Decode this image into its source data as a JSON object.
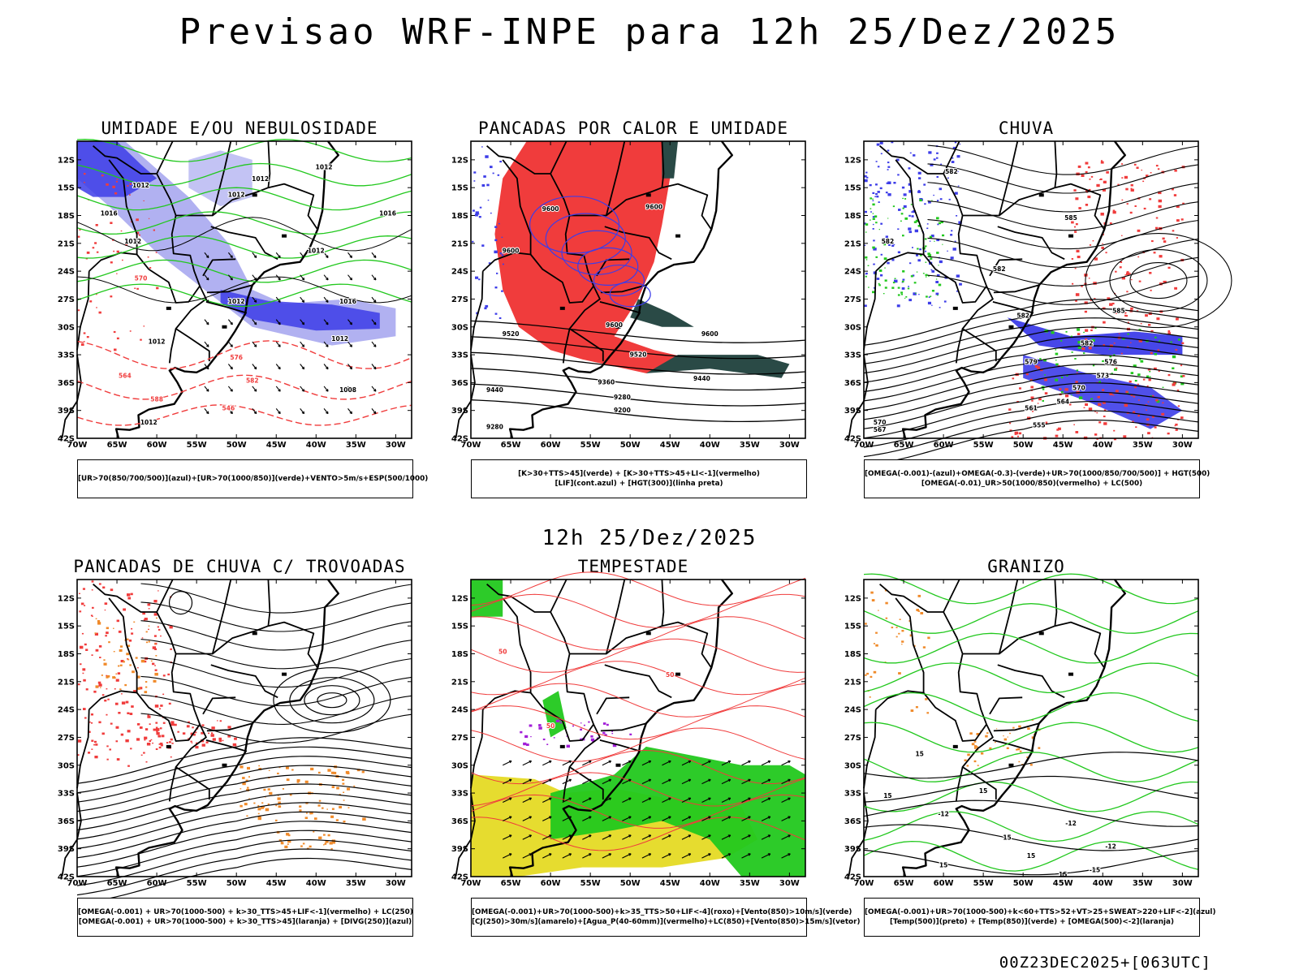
{
  "header": {
    "title": "Previsao WRF-INPE  para 12h 25/Dez/2025"
  },
  "mid_caption": "12h 25/Dez/2025",
  "footer": "00Z23DEC2025+[063UTC]",
  "axes": {
    "lat_labels": [
      "12S",
      "15S",
      "18S",
      "21S",
      "24S",
      "27S",
      "30S",
      "33S",
      "36S",
      "39S",
      "42S"
    ],
    "lon_labels": [
      "70W",
      "65W",
      "60W",
      "55W",
      "50W",
      "45W",
      "40W",
      "35W",
      "30W"
    ]
  },
  "panels": [
    {
      "id": "umidade",
      "title": "UMIDADE E/OU NEBULOSIDADE",
      "legend": [
        "[UR>70(850/700/500)](azul)+[UR>70(1000/850)](verde)+VENTO>5m/s+ESP(500/1000)"
      ],
      "contour_labels": [
        {
          "text": "1012",
          "lon": -39,
          "lat": -13.0
        },
        {
          "text": "1012",
          "lon": -47,
          "lat": -14.3
        },
        {
          "text": "1012",
          "lon": -62,
          "lat": -15.0
        },
        {
          "text": "1012",
          "lon": -50,
          "lat": -16.0
        },
        {
          "text": "1016",
          "lon": -66,
          "lat": -18.0
        },
        {
          "text": "1012",
          "lon": -63,
          "lat": -21.0
        },
        {
          "text": "1012",
          "lon": -40,
          "lat": -22.0
        },
        {
          "text": "1016",
          "lon": -31,
          "lat": -18.0
        },
        {
          "text": "1016",
          "lon": -36,
          "lat": -27.5
        },
        {
          "text": "1012",
          "lon": -50,
          "lat": -27.5
        },
        {
          "text": "1012",
          "lon": -37,
          "lat": -31.5
        },
        {
          "text": "1012",
          "lon": -60,
          "lat": -31.8
        },
        {
          "text": "1008",
          "lon": -36,
          "lat": -37.0
        },
        {
          "text": "1012",
          "lon": -61,
          "lat": -40.5
        },
        {
          "text": "582",
          "lon": -48,
          "lat": -36.0
        },
        {
          "text": "576",
          "lon": -50,
          "lat": -33.5
        },
        {
          "text": "564",
          "lon": -64,
          "lat": -35.5
        },
        {
          "text": "588",
          "lon": -60,
          "lat": -38.0
        },
        {
          "text": "546",
          "lon": -51,
          "lat": -39.0
        },
        {
          "text": "570",
          "lon": -62,
          "lat": -25.0
        }
      ]
    },
    {
      "id": "pancadas-calor",
      "title": "PANCADAS POR CALOR E UMIDADE",
      "legend": [
        "[K>30+TTS>45](verde) + [K>30+TTS>45+LI<-1](vermelho)",
        "[LIF](cont.azul) + [HGT(300)](linha preta)"
      ],
      "contour_labels": [
        {
          "text": "9600",
          "lon": -60,
          "lat": -17.5
        },
        {
          "text": "9600",
          "lon": -47,
          "lat": -17.3
        },
        {
          "text": "9600",
          "lon": -65,
          "lat": -22.0
        },
        {
          "text": "9600",
          "lon": -52,
          "lat": -30.0
        },
        {
          "text": "9600",
          "lon": -40,
          "lat": -31.0
        },
        {
          "text": "9520",
          "lon": -65,
          "lat": -31.0
        },
        {
          "text": "9520",
          "lon": -49,
          "lat": -33.2
        },
        {
          "text": "9440",
          "lon": -41,
          "lat": -35.8
        },
        {
          "text": "9440",
          "lon": -67,
          "lat": -37.0
        },
        {
          "text": "9360",
          "lon": -53,
          "lat": -36.2
        },
        {
          "text": "9280",
          "lon": -51,
          "lat": -37.8
        },
        {
          "text": "9200",
          "lon": -51,
          "lat": -39.2
        },
        {
          "text": "9280",
          "lon": -67,
          "lat": -41.0
        }
      ]
    },
    {
      "id": "chuva",
      "title": "CHUVA",
      "legend": [
        "[OMEGA(-0.001)-(azul)+OMEGA(-0.3)-(verde)+UR>70(1000/850/700/500)] + HGT(500)",
        "[OMEGA(-0.01)_UR>50(1000/850)(vermelho) + LC(500)"
      ],
      "contour_labels": [
        {
          "text": "582",
          "lon": -59,
          "lat": -13.5
        },
        {
          "text": "585",
          "lon": -44,
          "lat": -18.5
        },
        {
          "text": "582",
          "lon": -67,
          "lat": -21.0
        },
        {
          "text": "582",
          "lon": -53,
          "lat": -24.0
        },
        {
          "text": "582",
          "lon": -50,
          "lat": -29.0
        },
        {
          "text": "585",
          "lon": -38,
          "lat": -28.5
        },
        {
          "text": "582",
          "lon": -42,
          "lat": -32.0
        },
        {
          "text": "579",
          "lon": -49,
          "lat": -34.0
        },
        {
          "text": "576",
          "lon": -39,
          "lat": -34.0
        },
        {
          "text": "573",
          "lon": -40,
          "lat": -35.5
        },
        {
          "text": "570",
          "lon": -43,
          "lat": -36.8
        },
        {
          "text": "564",
          "lon": -45,
          "lat": -38.3
        },
        {
          "text": "561",
          "lon": -49,
          "lat": -39.0
        },
        {
          "text": "570",
          "lon": -68,
          "lat": -40.5
        },
        {
          "text": "567",
          "lon": -68,
          "lat": -41.3
        },
        {
          "text": "555",
          "lon": -48,
          "lat": -40.8
        }
      ]
    },
    {
      "id": "trovoadas",
      "title": "PANCADAS DE CHUVA C/ TROVOADAS",
      "legend": [
        "[OMEGA(-0.001) + UR>70(1000-500) + k>30_TTS>45+LIF<-1](vermelho) + LC(250)",
        "[OMEGA(-0.001) + UR>70(1000-500) + k>30_TTS>45](laranja) + [DIVG(250)](azul)"
      ],
      "contour_labels": []
    },
    {
      "id": "tempestade",
      "title": "TEMPESTADE",
      "legend": [
        "[OMEGA(-0.001)+UR>70(1000-500)+k>35_TTS>50+LIF<-4](roxo)+[Vento(850)>10m/s](verde)",
        "[CJ(250)>30m/s](amarelo)+[Agua_P(40-60mm)](vermelho)+LC(850)+[Vento(850)>15m/s](vetor)"
      ],
      "contour_labels": [
        {
          "text": "50",
          "lon": -66,
          "lat": -18.0
        },
        {
          "text": "50",
          "lon": -45,
          "lat": -20.5
        },
        {
          "text": "50",
          "lon": -60,
          "lat": -26.0
        }
      ]
    },
    {
      "id": "granizo",
      "title": "GRANIZO",
      "legend": [
        "[OMEGA(-0.001)+UR>70(1000-500)+k<60+TTS>52+VT>25+SWEAT>220+LIF<-2](azul)",
        "[Temp(500)](preto) + [Temp(850)](verde) + [OMEGA(500)<-2](laranja)"
      ],
      "contour_labels": [
        {
          "text": "15",
          "lon": -63,
          "lat": -29.0
        },
        {
          "text": "15",
          "lon": -67,
          "lat": -33.5
        },
        {
          "text": "15",
          "lon": -55,
          "lat": -33.0
        },
        {
          "text": "-12",
          "lon": -60,
          "lat": -35.5
        },
        {
          "text": "15",
          "lon": -52,
          "lat": -38.0
        },
        {
          "text": "-12",
          "lon": -44,
          "lat": -36.5
        },
        {
          "text": "15",
          "lon": -49,
          "lat": -40.0
        },
        {
          "text": "15",
          "lon": -60,
          "lat": -41.0
        },
        {
          "text": "-12",
          "lon": -39,
          "lat": -39.0
        },
        {
          "text": "15",
          "lon": -45,
          "lat": -42.0
        },
        {
          "text": "-15",
          "lon": -41,
          "lat": -41.5
        }
      ]
    }
  ],
  "colors": {
    "frame": "#000000",
    "red": "#f03c3c",
    "blue": "#3d3de8",
    "lavender": "#a9a9f0",
    "green": "#22c81e",
    "orange": "#f08a2a",
    "yellow": "#e6dc2f",
    "teal": "#2a4a46",
    "purple": "#a21fd8"
  }
}
